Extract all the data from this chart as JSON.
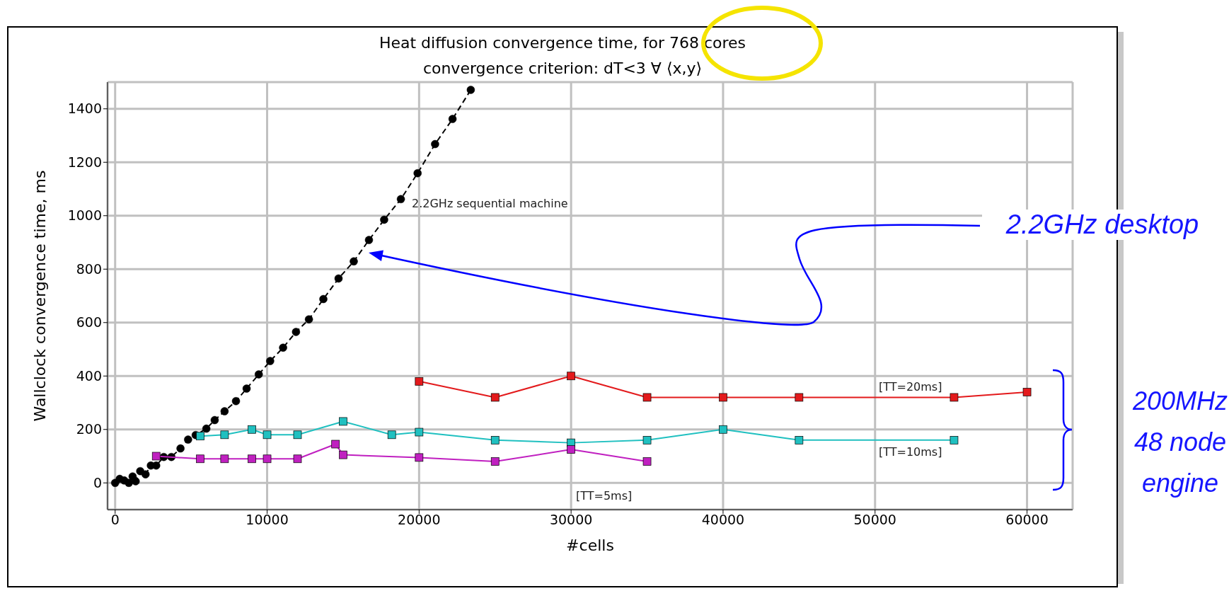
{
  "chart_data": {
    "type": "line",
    "title": "Heat diffusion convergence time, for 768 cores",
    "subtitle": "convergence criterion: dT<3 ∀ ⟨x,y⟩",
    "xlabel": "#cells",
    "ylabel": "Wallclock convergence time, ms",
    "xlim": [
      -500,
      63000
    ],
    "xticks": [
      0,
      10000,
      20000,
      30000,
      40000,
      50000,
      60000
    ],
    "ylim": [
      -100,
      1500
    ],
    "yticks": [
      0,
      200,
      400,
      600,
      800,
      1000,
      1200,
      1400
    ],
    "grid": true,
    "series": [
      {
        "color": "#000000",
        "marker": "circle",
        "line_style": "dashed",
        "x": [
          0,
          300,
          600,
          900,
          1150,
          1350,
          1650,
          2000,
          2350,
          2700,
          3200,
          3700,
          4300,
          4800,
          5300,
          6000,
          6550,
          7200,
          7950,
          8650,
          9450,
          10200,
          11050,
          11900,
          12750,
          13700,
          14700,
          15700,
          16700,
          17700,
          18800,
          19900,
          21050,
          22200,
          23400
        ],
        "values": [
          0,
          15,
          9,
          0,
          24,
          6,
          44,
          32,
          65,
          65,
          97,
          97,
          129,
          162,
          179,
          203,
          235,
          268,
          306,
          353,
          406,
          456,
          506,
          565,
          612,
          688,
          765,
          829,
          909,
          985,
          1062,
          1159,
          1268,
          1362,
          1471
        ]
      },
      {
        "color": "#e31a1c",
        "marker": "square",
        "line_style": "solid",
        "x": [
          20000,
          25000,
          30000,
          35000,
          40000,
          45000,
          55200,
          60000
        ],
        "values": [
          380,
          320,
          400,
          320,
          320,
          320,
          320,
          340
        ]
      },
      {
        "color": "#20c0c0",
        "marker": "square",
        "line_style": "solid",
        "x": [
          5600,
          7200,
          9000,
          10000,
          12000,
          15000,
          18200,
          20000,
          25000,
          30000,
          35000,
          40000,
          45000,
          55200
        ],
        "values": [
          175,
          180,
          200,
          180,
          180,
          230,
          180,
          190,
          160,
          150,
          160,
          200,
          160,
          160
        ]
      },
      {
        "color": "#c020c0",
        "marker": "square",
        "line_style": "solid",
        "x": [
          2700,
          5600,
          7200,
          9000,
          10000,
          12000,
          14500,
          15000,
          20000,
          25000,
          30000,
          35000
        ],
        "values": [
          100,
          90,
          90,
          90,
          90,
          90,
          145,
          105,
          95,
          80,
          125,
          80
        ]
      }
    ],
    "annotations": [
      "2.2GHz sequential machine",
      "[TT=20ms]",
      "[TT=10ms]",
      "[TT=5ms]",
      "2.2GHz desktop",
      "200MHz\n48 node\nengine"
    ]
  }
}
